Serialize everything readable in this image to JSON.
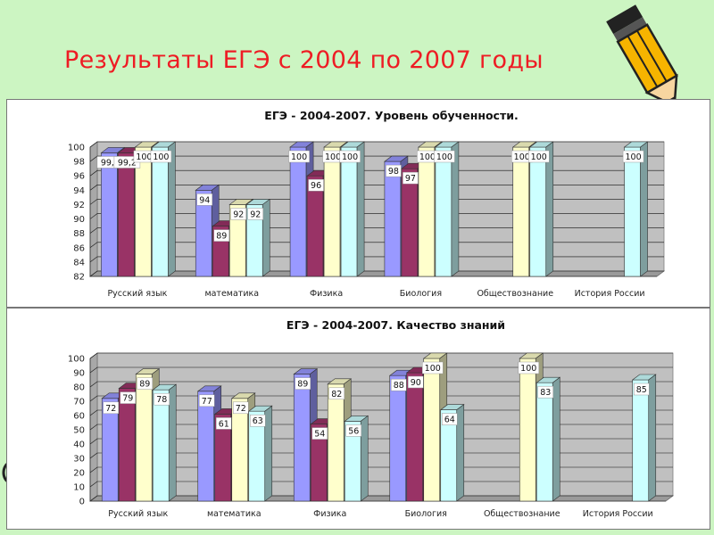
{
  "slide": {
    "title": "Результаты ЕГЭ с 2004 по 2007 годы"
  },
  "colors": {
    "background": "#ccf5c2",
    "title": "#ee1c24",
    "series": [
      "#9999ff",
      "#993366",
      "#ffffcc",
      "#ccffff"
    ]
  },
  "icons": {
    "pencil": "pencil-icon"
  },
  "chart_data": [
    {
      "type": "bar",
      "title": "ЕГЭ - 2004-2007. Уровень обученности.",
      "categories": [
        "Русский язык",
        "математика",
        "Физика",
        "Биология",
        "Обществознание",
        "История России"
      ],
      "ylim": [
        82,
        100
      ],
      "yticks": [
        82,
        84,
        86,
        88,
        90,
        92,
        94,
        96,
        98,
        100
      ],
      "grid": true,
      "series": [
        {
          "values": [
            99.2,
            94,
            100,
            98,
            null,
            null
          ],
          "labels": [
            "99,2",
            "94",
            "100",
            "98",
            "",
            ""
          ]
        },
        {
          "values": [
            99.2,
            89,
            96,
            97,
            null,
            null
          ],
          "labels": [
            "99,2",
            "89",
            "96",
            "97",
            "",
            ""
          ]
        },
        {
          "values": [
            100,
            92,
            100,
            100,
            100,
            null
          ],
          "labels": [
            "100",
            "92",
            "100",
            "100",
            "100",
            ""
          ]
        },
        {
          "values": [
            100,
            92,
            100,
            100,
            100,
            100
          ],
          "labels": [
            "100",
            "92",
            "100",
            "100",
            "100",
            "100"
          ]
        }
      ]
    },
    {
      "type": "bar",
      "title": "ЕГЭ - 2004-2007. Качество знаний",
      "categories": [
        "Русский язык",
        "математика",
        "Физика",
        "Биология",
        "Обществознание",
        "История России"
      ],
      "ylim": [
        0,
        100
      ],
      "yticks": [
        0,
        10,
        20,
        30,
        40,
        50,
        60,
        70,
        80,
        90,
        100
      ],
      "grid": true,
      "series": [
        {
          "values": [
            72,
            77,
            89,
            88,
            null,
            null
          ],
          "labels": [
            "72",
            "77",
            "89",
            "88",
            "",
            ""
          ]
        },
        {
          "values": [
            79,
            61,
            54,
            90,
            null,
            null
          ],
          "labels": [
            "79",
            "61",
            "54",
            "90",
            "",
            ""
          ]
        },
        {
          "values": [
            89,
            72,
            82,
            100,
            100,
            null
          ],
          "labels": [
            "89",
            "72",
            "82",
            "100",
            "100",
            ""
          ]
        },
        {
          "values": [
            78,
            63,
            56,
            64,
            83,
            85
          ],
          "labels": [
            "78",
            "63",
            "56",
            "64",
            "83",
            "85"
          ]
        }
      ]
    }
  ]
}
